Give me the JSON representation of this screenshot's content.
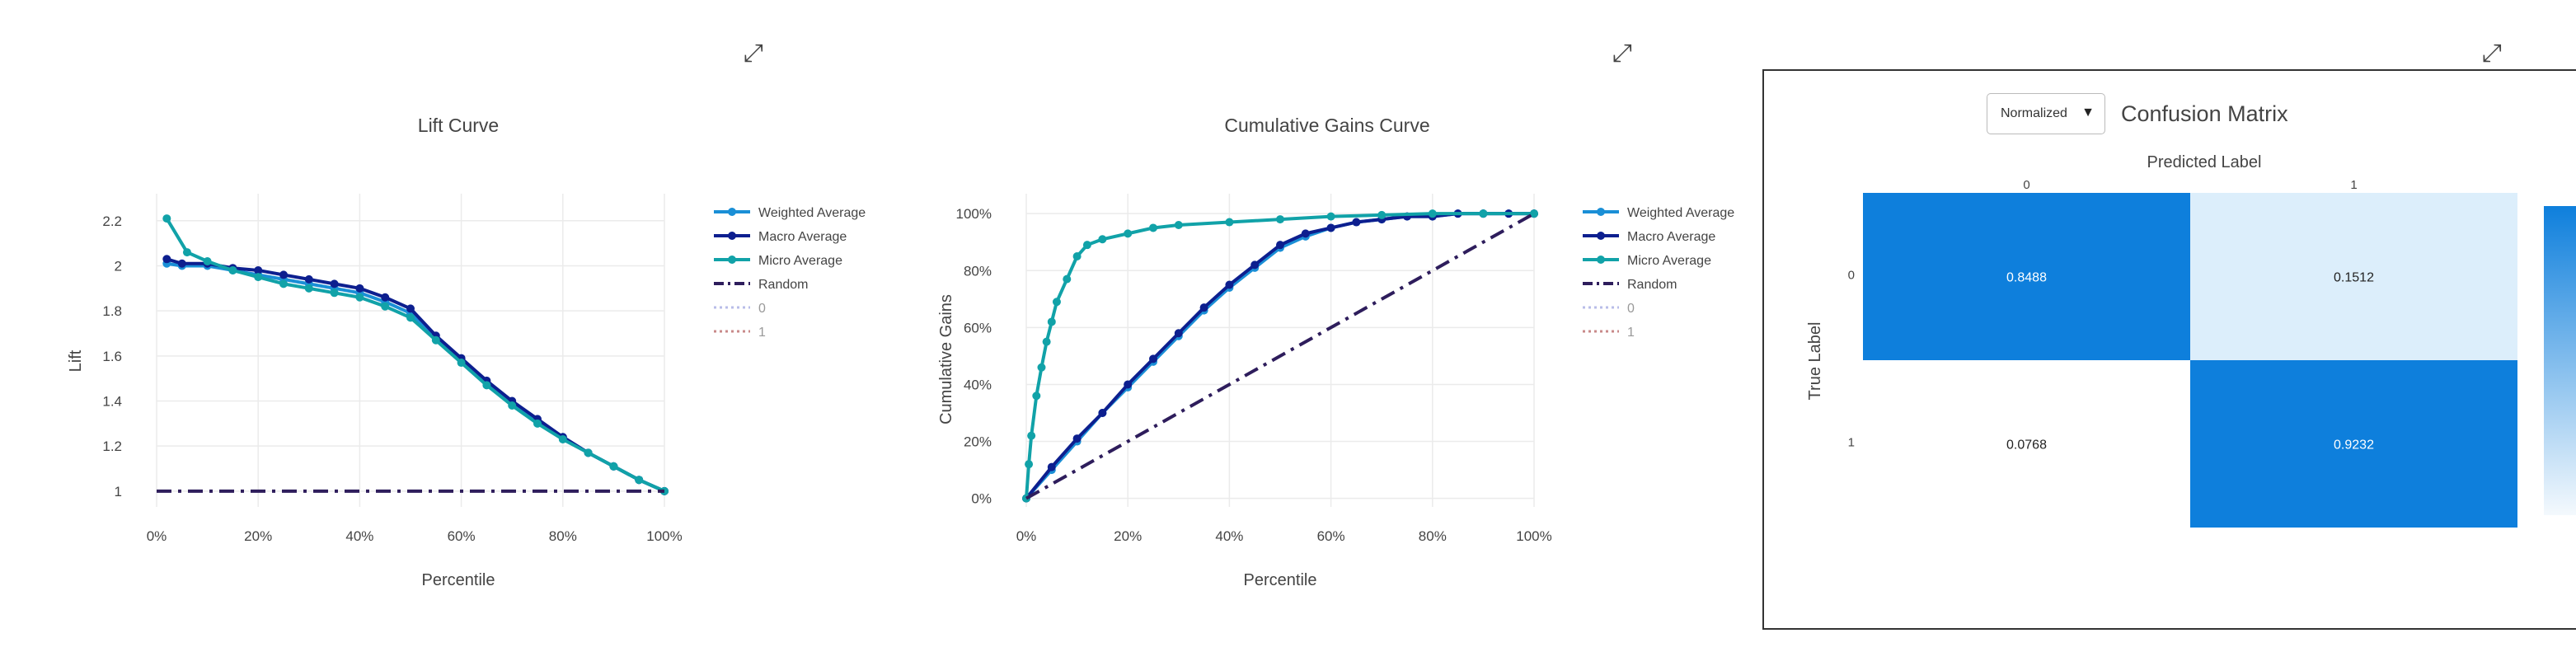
{
  "controls": {
    "normalize_dropdown": {
      "selected": "Normalized",
      "caret_icon": "caret-down-icon"
    },
    "expand_icon": "expand-diagonal-icon"
  },
  "colors": {
    "weighted": "#1a8fd6",
    "macro": "#0d1f8f",
    "micro": "#11a2a8",
    "random": "#2e1d5c",
    "class0": "#b8bde8",
    "class1": "#c98a8a",
    "cm_dark": "#0e7fdc",
    "cm_light": "#dceefb"
  },
  "chart_data": [
    {
      "type": "line",
      "title": "Lift Curve",
      "xlabel": "Percentile",
      "ylabel": "Lift",
      "xlim": [
        0,
        1
      ],
      "ylim": [
        0.93,
        2.32
      ],
      "xticks": [
        0,
        0.2,
        0.4,
        0.6,
        0.8,
        1.0
      ],
      "xtick_labels": [
        "0%",
        "20%",
        "40%",
        "60%",
        "80%",
        "100%"
      ],
      "yticks": [
        1,
        1.2,
        1.4,
        1.6,
        1.8,
        2,
        2.2
      ],
      "ytick_labels": [
        "1",
        "1.2",
        "1.4",
        "1.6",
        "1.8",
        "2",
        "2.2"
      ],
      "grid": true,
      "legend_position": "right",
      "legend": [
        "Weighted Average",
        "Macro Average",
        "Micro Average",
        "Random",
        "0",
        "1"
      ],
      "series": [
        {
          "name": "Weighted Average",
          "color_key": "weighted",
          "x": [
            0.02,
            0.05,
            0.1,
            0.15,
            0.2,
            0.25,
            0.3,
            0.35,
            0.4,
            0.45,
            0.5,
            0.55,
            0.6,
            0.65,
            0.7,
            0.75,
            0.8,
            0.85,
            0.9,
            0.95,
            1.0
          ],
          "y": [
            2.01,
            2.0,
            2.0,
            1.98,
            1.96,
            1.94,
            1.92,
            1.9,
            1.88,
            1.84,
            1.79,
            1.68,
            1.58,
            1.48,
            1.39,
            1.31,
            1.24,
            1.17,
            1.11,
            1.05,
            1.0
          ]
        },
        {
          "name": "Macro Average",
          "color_key": "macro",
          "x": [
            0.02,
            0.05,
            0.1,
            0.15,
            0.2,
            0.25,
            0.3,
            0.35,
            0.4,
            0.45,
            0.5,
            0.55,
            0.6,
            0.65,
            0.7,
            0.75,
            0.8,
            0.85,
            0.9,
            0.95,
            1.0
          ],
          "y": [
            2.03,
            2.01,
            2.01,
            1.99,
            1.98,
            1.96,
            1.94,
            1.92,
            1.9,
            1.86,
            1.81,
            1.69,
            1.59,
            1.49,
            1.4,
            1.32,
            1.24,
            1.17,
            1.11,
            1.05,
            1.0
          ]
        },
        {
          "name": "Micro Average",
          "color_key": "micro",
          "x": [
            0.02,
            0.06,
            0.1,
            0.15,
            0.2,
            0.25,
            0.3,
            0.35,
            0.4,
            0.45,
            0.5,
            0.55,
            0.6,
            0.65,
            0.7,
            0.75,
            0.8,
            0.85,
            0.9,
            0.95,
            1.0
          ],
          "y": [
            2.21,
            2.06,
            2.02,
            1.98,
            1.95,
            1.92,
            1.9,
            1.88,
            1.86,
            1.82,
            1.77,
            1.67,
            1.57,
            1.47,
            1.38,
            1.3,
            1.23,
            1.17,
            1.11,
            1.05,
            1.0
          ]
        },
        {
          "name": "Random",
          "color_key": "random",
          "dash": "dashdot",
          "x": [
            0.0,
            1.0
          ],
          "y": [
            1.0,
            1.0
          ]
        }
      ]
    },
    {
      "type": "line",
      "title": "Cumulative Gains Curve",
      "xlabel": "Percentile",
      "ylabel": "Cumulative Gains",
      "xlim": [
        0,
        1
      ],
      "ylim": [
        -0.03,
        1.07
      ],
      "xticks": [
        0,
        0.2,
        0.4,
        0.6,
        0.8,
        1.0
      ],
      "xtick_labels": [
        "0%",
        "20%",
        "40%",
        "60%",
        "80%",
        "100%"
      ],
      "yticks": [
        0,
        0.2,
        0.4,
        0.6,
        0.8,
        1.0
      ],
      "ytick_labels": [
        "0%",
        "20%",
        "40%",
        "60%",
        "80%",
        "100%"
      ],
      "grid": true,
      "legend_position": "right",
      "legend": [
        "Weighted Average",
        "Macro Average",
        "Micro Average",
        "Random",
        "0",
        "1"
      ],
      "series": [
        {
          "name": "Weighted Average",
          "color_key": "weighted",
          "x": [
            0,
            0.05,
            0.1,
            0.15,
            0.2,
            0.25,
            0.3,
            0.35,
            0.4,
            0.45,
            0.5,
            0.55,
            0.6,
            0.65,
            0.7,
            0.75,
            0.8,
            0.85,
            0.9,
            0.95,
            1.0
          ],
          "y": [
            0,
            0.1,
            0.2,
            0.3,
            0.39,
            0.48,
            0.57,
            0.66,
            0.74,
            0.81,
            0.88,
            0.92,
            0.95,
            0.97,
            0.98,
            0.99,
            0.99,
            1.0,
            1.0,
            1.0,
            1.0
          ]
        },
        {
          "name": "Macro Average",
          "color_key": "macro",
          "x": [
            0,
            0.05,
            0.1,
            0.15,
            0.2,
            0.25,
            0.3,
            0.35,
            0.4,
            0.45,
            0.5,
            0.55,
            0.6,
            0.65,
            0.7,
            0.75,
            0.8,
            0.85,
            0.9,
            0.95,
            1.0
          ],
          "y": [
            0,
            0.11,
            0.21,
            0.3,
            0.4,
            0.49,
            0.58,
            0.67,
            0.75,
            0.82,
            0.89,
            0.93,
            0.95,
            0.97,
            0.98,
            0.99,
            0.99,
            1.0,
            1.0,
            1.0,
            1.0
          ]
        },
        {
          "name": "Micro Average",
          "color_key": "micro",
          "x": [
            0,
            0.005,
            0.01,
            0.02,
            0.03,
            0.04,
            0.05,
            0.06,
            0.08,
            0.1,
            0.12,
            0.15,
            0.2,
            0.25,
            0.3,
            0.4,
            0.5,
            0.6,
            0.7,
            0.8,
            0.9,
            1.0
          ],
          "y": [
            0,
            0.12,
            0.22,
            0.36,
            0.46,
            0.55,
            0.62,
            0.69,
            0.77,
            0.85,
            0.89,
            0.91,
            0.93,
            0.95,
            0.96,
            0.97,
            0.98,
            0.99,
            0.995,
            1.0,
            1.0,
            1.0
          ]
        },
        {
          "name": "Random",
          "color_key": "random",
          "dash": "dashdot",
          "x": [
            0,
            1.0
          ],
          "y": [
            0,
            1.0
          ]
        }
      ]
    },
    {
      "type": "heatmap",
      "title": "Confusion Matrix",
      "xlabel": "Predicted Label",
      "ylabel": "True Label",
      "x_categories": [
        "0",
        "1"
      ],
      "y_categories": [
        "0",
        "1"
      ],
      "values": [
        [
          0.8488,
          0.1512
        ],
        [
          0.0768,
          0.9232
        ]
      ],
      "value_labels": [
        [
          "0.8488",
          "0.1512"
        ],
        [
          "0.0768",
          "0.9232"
        ]
      ],
      "colorscale": "blues"
    }
  ]
}
